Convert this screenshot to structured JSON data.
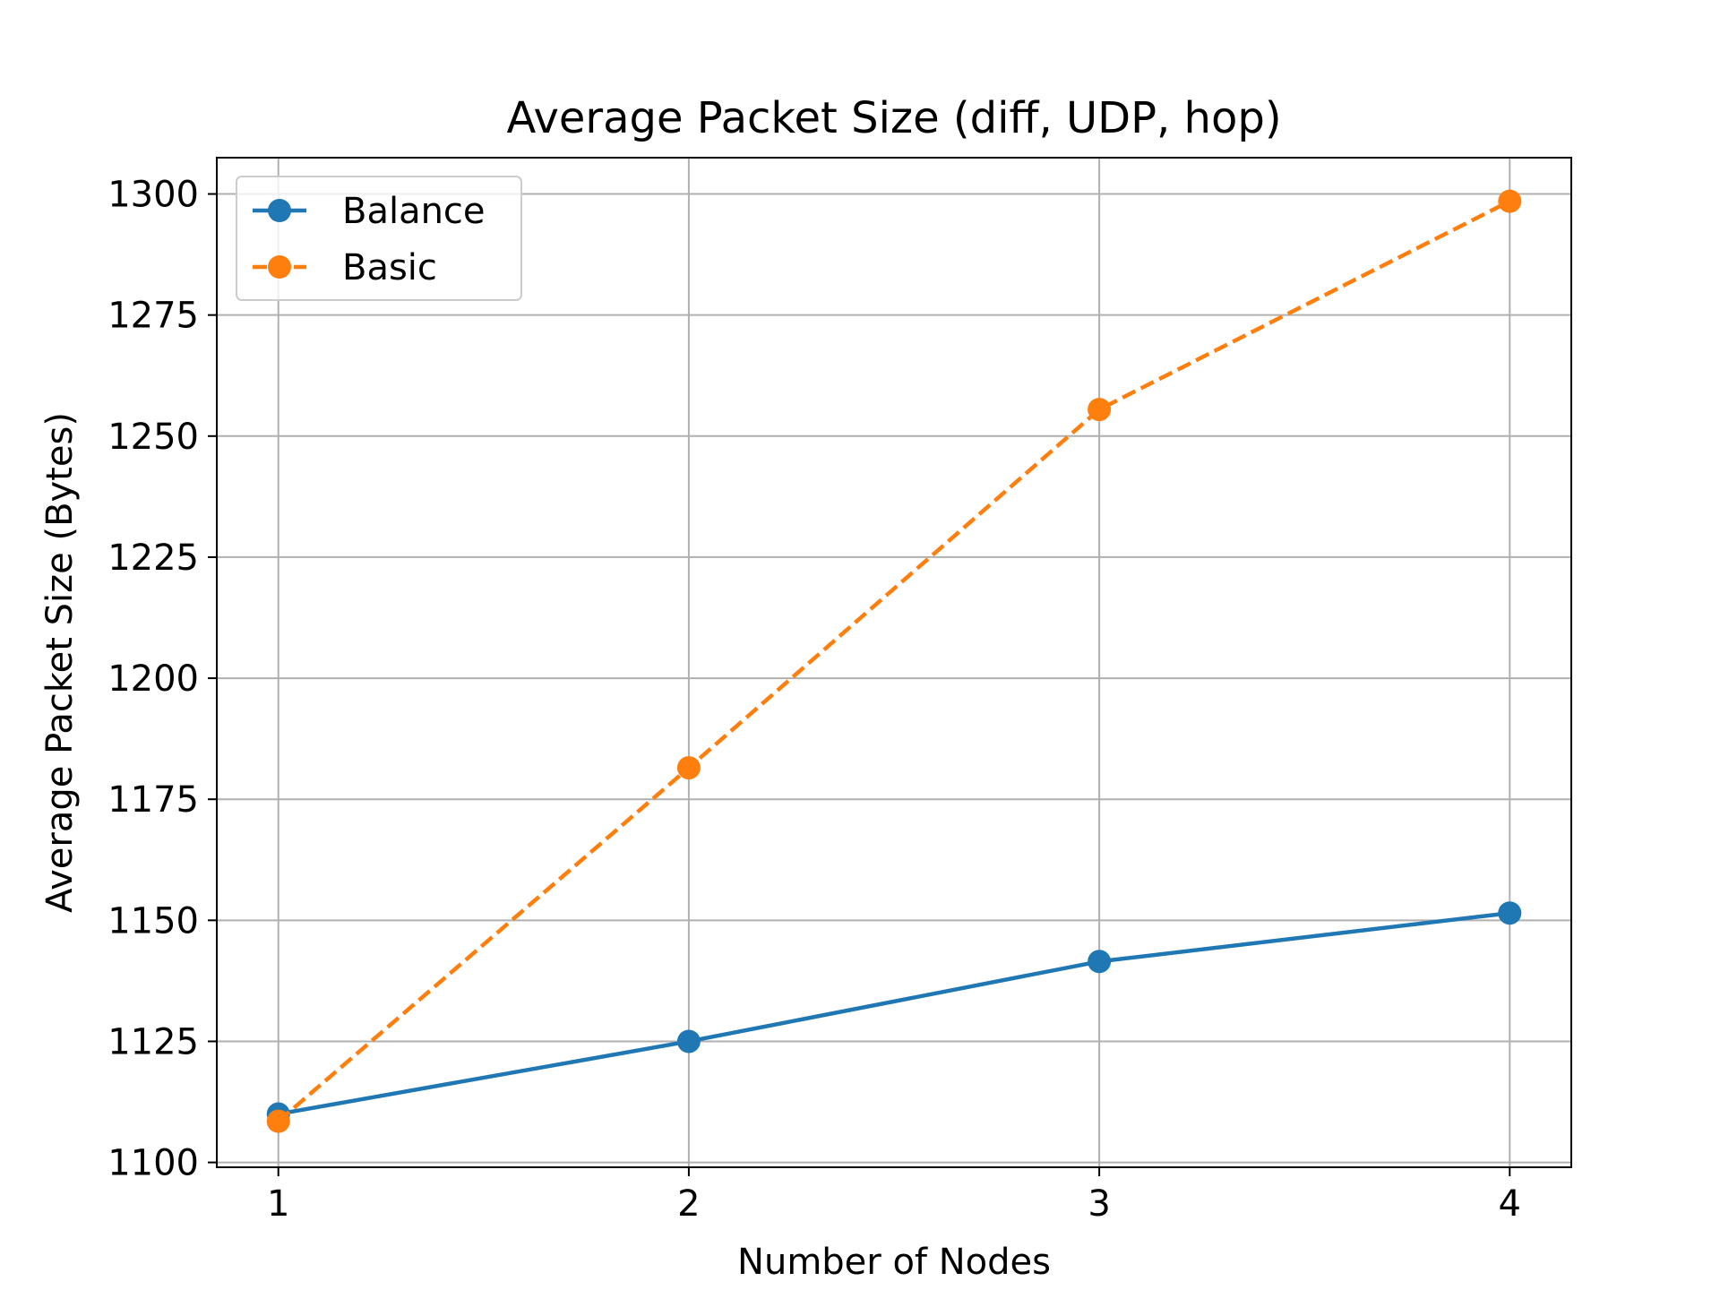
{
  "chart_data": {
    "type": "line",
    "title": "Average Packet Size (diff, UDP, hop)",
    "xlabel": "Number of Nodes",
    "ylabel": "Average Packet Size (Bytes)",
    "x": [
      1,
      2,
      3,
      4
    ],
    "x_tick_labels": [
      "1",
      "2",
      "3",
      "4"
    ],
    "y_tick_values": [
      1100,
      1125,
      1150,
      1175,
      1200,
      1225,
      1250,
      1275,
      1300
    ],
    "y_tick_labels": [
      "1100",
      "1125",
      "1150",
      "1175",
      "1200",
      "1225",
      "1250",
      "1275",
      "1300"
    ],
    "xlim": [
      0.85,
      4.15
    ],
    "ylim": [
      1099,
      1307.5
    ],
    "grid": true,
    "legend_position": "upper-left",
    "series": [
      {
        "name": "Balance",
        "values": [
          1110,
          1125,
          1141.5,
          1151.5
        ],
        "color": "#1f77b4",
        "line_style": "solid",
        "marker": "circle"
      },
      {
        "name": "Basic",
        "values": [
          1108.5,
          1181.5,
          1255.5,
          1298.5
        ],
        "color": "#ff7f0e",
        "line_style": "dashed",
        "marker": "circle"
      }
    ]
  }
}
